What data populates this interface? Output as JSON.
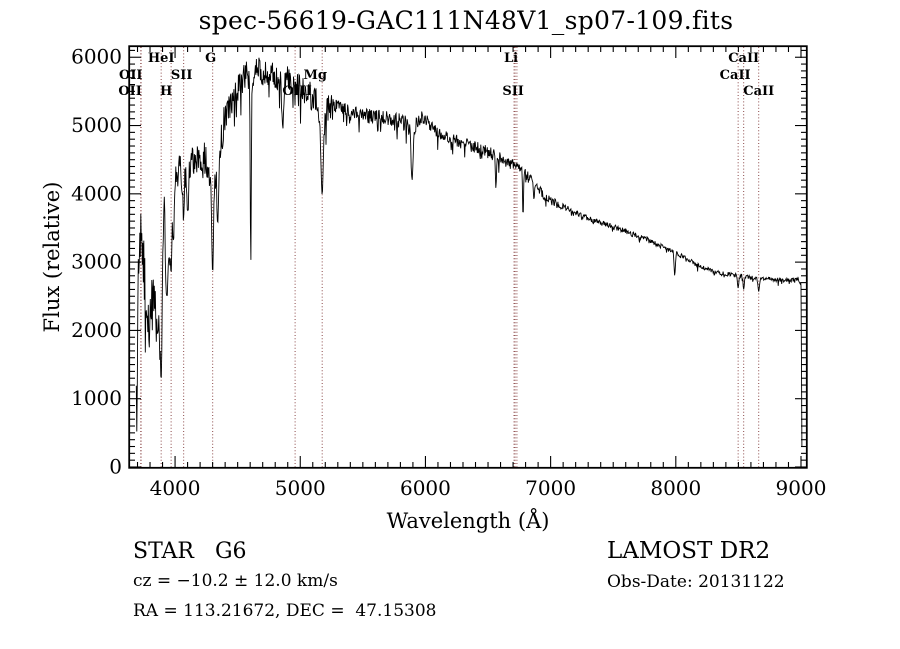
{
  "title": "spec-56619-GAC111N48V1_sp07-109.fits",
  "annotations": {
    "class_line": "STAR   G6",
    "survey_line": "LAMOST DR2",
    "cz_line": "cz = −10.2 ± 12.0 km/s",
    "obsdate_line": "Obs-Date: 20131122",
    "radec_line": "RA = 113.21672, DEC =  47.15308"
  },
  "chart_data": {
    "type": "line",
    "title": "spec-56619-GAC111N48V1_sp07-109.fits",
    "xlabel": "Wavelength (Å)",
    "ylabel": "Flux (relative)",
    "xlim": [
      3640,
      9040
    ],
    "ylim": [
      0,
      6150
    ],
    "x_ticks": [
      4000,
      5000,
      6000,
      7000,
      8000,
      9000
    ],
    "y_ticks": [
      0,
      1000,
      2000,
      3000,
      4000,
      5000,
      6000
    ],
    "x_minor_interval": 100,
    "y_minor_interval": 100,
    "grid": false,
    "spectrum_color": "#000000",
    "marker_line_color": "#8b4747",
    "frame_color": "#000000",
    "line_markers": [
      {
        "label": "OII",
        "wavelength": 3726.0,
        "row": 2,
        "dx": -10
      },
      {
        "label": "OII",
        "wavelength": 3728.8,
        "row": 3,
        "dx": -11
      },
      {
        "label": "HeI",
        "wavelength": 3889.0,
        "row": 1,
        "dx": 0
      },
      {
        "label": "H",
        "wavelength": 3968.5,
        "row": 3,
        "dx": -5
      },
      {
        "label": "SII",
        "wavelength": 4068.6,
        "row": 2,
        "dx": -2
      },
      {
        "label": "G",
        "wavelength": 4300.4,
        "row": 1,
        "dx": -2
      },
      {
        "label": "OIII",
        "wavelength": 4958.9,
        "row": 3,
        "dx": 2
      },
      {
        "label": "Mg",
        "wavelength": 5175.3,
        "row": 2,
        "dx": -7
      },
      {
        "label": "Li",
        "wavelength": 6707.8,
        "row": 1,
        "dx": -3
      },
      {
        "label": "SII",
        "wavelength": 6716.4,
        "row": 3,
        "dx": -2
      },
      {
        "label": "",
        "wavelength": 6730.8,
        "row": 3,
        "dx": 0
      },
      {
        "label": "CaII",
        "wavelength": 8498.0,
        "row": 2,
        "dx": -3
      },
      {
        "label": "CaII",
        "wavelength": 8542.1,
        "row": 1,
        "dx": 0
      },
      {
        "label": "CaII",
        "wavelength": 8662.1,
        "row": 3,
        "dx": 0
      }
    ],
    "envelope": [
      [
        3690,
        2600
      ],
      [
        3705,
        3150
      ],
      [
        3727,
        3350
      ],
      [
        3745,
        3050
      ],
      [
        3762,
        2650
      ],
      [
        3778,
        2150
      ],
      [
        3800,
        2150
      ],
      [
        3820,
        2400
      ],
      [
        3842,
        2550
      ],
      [
        3865,
        2300
      ],
      [
        3885,
        1700
      ],
      [
        3900,
        2900
      ],
      [
        3915,
        3650
      ],
      [
        3932,
        2900
      ],
      [
        3950,
        2850
      ],
      [
        3968,
        3150
      ],
      [
        3985,
        3700
      ],
      [
        4005,
        4150
      ],
      [
        4040,
        4350
      ],
      [
        4070,
        4250
      ],
      [
        4100,
        4150
      ],
      [
        4140,
        4550
      ],
      [
        4190,
        4450
      ],
      [
        4240,
        4500
      ],
      [
        4285,
        4150
      ],
      [
        4300,
        3950
      ],
      [
        4320,
        4250
      ],
      [
        4345,
        4450
      ],
      [
        4380,
        4950
      ],
      [
        4420,
        5200
      ],
      [
        4470,
        5450
      ],
      [
        4520,
        5600
      ],
      [
        4565,
        5750
      ],
      [
        4620,
        5750
      ],
      [
        4680,
        5800
      ],
      [
        4740,
        5780
      ],
      [
        4800,
        5750
      ],
      [
        4860,
        5620
      ],
      [
        4905,
        5700
      ],
      [
        4950,
        5650
      ],
      [
        5000,
        5570
      ],
      [
        5060,
        5460
      ],
      [
        5120,
        5400
      ],
      [
        5175,
        5050
      ],
      [
        5230,
        5300
      ],
      [
        5300,
        5260
      ],
      [
        5400,
        5180
      ],
      [
        5500,
        5140
      ],
      [
        5600,
        5150
      ],
      [
        5700,
        5090
      ],
      [
        5800,
        5060
      ],
      [
        5860,
        5020
      ],
      [
        5893,
        4820
      ],
      [
        5930,
        5050
      ],
      [
        5970,
        5120
      ],
      [
        6030,
        5030
      ],
      [
        6100,
        4900
      ],
      [
        6180,
        4820
      ],
      [
        6270,
        4760
      ],
      [
        6370,
        4700
      ],
      [
        6460,
        4640
      ],
      [
        6560,
        4560
      ],
      [
        6650,
        4470
      ],
      [
        6720,
        4420
      ],
      [
        6780,
        4370
      ],
      [
        6830,
        4250
      ],
      [
        6860,
        4180
      ],
      [
        6910,
        4060
      ],
      [
        6960,
        3950
      ],
      [
        7010,
        3880
      ],
      [
        7090,
        3830
      ],
      [
        7180,
        3740
      ],
      [
        7280,
        3660
      ],
      [
        7380,
        3590
      ],
      [
        7480,
        3530
      ],
      [
        7580,
        3470
      ],
      [
        7680,
        3390
      ],
      [
        7780,
        3320
      ],
      [
        7880,
        3240
      ],
      [
        7980,
        3160
      ],
      [
        8080,
        3060
      ],
      [
        8180,
        2950
      ],
      [
        8290,
        2870
      ],
      [
        8400,
        2830
      ],
      [
        8510,
        2800
      ],
      [
        8620,
        2770
      ],
      [
        8720,
        2760
      ],
      [
        8820,
        2740
      ],
      [
        8910,
        2730
      ],
      [
        8970,
        2760
      ],
      [
        9000,
        2680
      ]
    ],
    "noise_regions": [
      [
        3690,
        3988,
        420
      ],
      [
        3988,
        4400,
        265
      ],
      [
        4400,
        5260,
        205
      ],
      [
        5260,
        5900,
        115
      ],
      [
        5900,
        6600,
        90
      ],
      [
        6600,
        7100,
        62
      ],
      [
        7100,
        7900,
        40
      ],
      [
        7900,
        9001,
        30
      ]
    ],
    "absorption_features": [
      [
        3694,
        520,
        5
      ],
      [
        3860,
        1950,
        7
      ],
      [
        3889,
        1300,
        6
      ],
      [
        3933,
        2500,
        6
      ],
      [
        3968,
        2850,
        6
      ],
      [
        4068,
        3650,
        5
      ],
      [
        4101,
        3750,
        6
      ],
      [
        4300,
        2820,
        6
      ],
      [
        4340,
        3550,
        6
      ],
      [
        4605,
        2950,
        4
      ],
      [
        4861,
        4950,
        6
      ],
      [
        5175,
        3990,
        9
      ],
      [
        5893,
        4200,
        7
      ],
      [
        6563,
        4070,
        4
      ],
      [
        6780,
        3660,
        4
      ],
      [
        6867,
        3920,
        5
      ],
      [
        7991,
        2800,
        5
      ],
      [
        8498,
        2620,
        5
      ],
      [
        8542,
        2600,
        5
      ],
      [
        8662,
        2570,
        6
      ]
    ],
    "end_drop": [
      [
        9000,
        2650
      ],
      [
        9004,
        1500
      ],
      [
        9007,
        300
      ]
    ]
  }
}
